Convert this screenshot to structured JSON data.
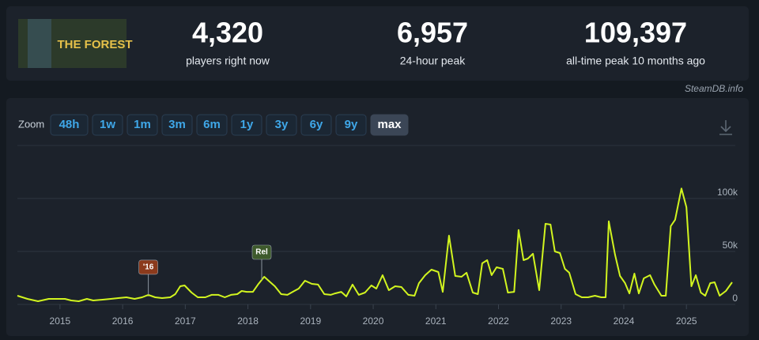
{
  "header": {
    "logo": "THE FOREST",
    "stats": [
      {
        "value": "4,320",
        "label": "players right now"
      },
      {
        "value": "6,957",
        "label": "24-hour peak"
      },
      {
        "value": "109,397",
        "label": "all-time peak 10 months ago"
      }
    ],
    "credit": "SteamDB.info"
  },
  "zoom": {
    "label": "Zoom",
    "buttons": [
      "48h",
      "1w",
      "1m",
      "3m",
      "6m",
      "1y",
      "3y",
      "6y",
      "9y",
      "max"
    ],
    "active": "max"
  },
  "chart_data": {
    "type": "line",
    "color": "#d2f51f",
    "grid": true,
    "x": [
      2014.32,
      2014.48,
      2014.65,
      2014.82,
      2014.95,
      2015.08,
      2015.18,
      2015.3,
      2015.43,
      2015.53,
      2015.68,
      2015.81,
      2015.93,
      2016.06,
      2016.19,
      2016.31,
      2016.41,
      2016.52,
      2016.63,
      2016.76,
      2016.84,
      2016.92,
      2016.99,
      2017.1,
      2017.2,
      2017.32,
      2017.42,
      2017.53,
      2017.63,
      2017.73,
      2017.83,
      2017.9,
      2017.98,
      2018.08,
      2018.16,
      2018.26,
      2018.33,
      2018.43,
      2018.53,
      2018.63,
      2018.74,
      2018.81,
      2018.91,
      2019.02,
      2019.12,
      2019.22,
      2019.32,
      2019.39,
      2019.49,
      2019.57,
      2019.67,
      2019.77,
      2019.87,
      2019.97,
      2020.05,
      2020.15,
      2020.25,
      2020.35,
      2020.45,
      2020.56,
      2020.66,
      2020.73,
      2020.83,
      2020.93,
      2021.04,
      2021.11,
      2021.21,
      2021.31,
      2021.41,
      2021.49,
      2021.59,
      2021.67,
      2021.74,
      2021.82,
      2021.89,
      2021.97,
      2022.07,
      2022.15,
      2022.25,
      2022.32,
      2022.4,
      2022.47,
      2022.55,
      2022.65,
      2022.75,
      2022.83,
      2022.9,
      2022.98,
      2023.06,
      2023.13,
      2023.23,
      2023.33,
      2023.43,
      2023.54,
      2023.64,
      2023.71,
      2023.76,
      2023.86,
      2023.94,
      2024.02,
      2024.09,
      2024.17,
      2024.24,
      2024.32,
      2024.42,
      2024.49,
      2024.6,
      2024.67,
      2024.75,
      2024.82,
      2024.92,
      2025.0,
      2025.08,
      2025.15,
      2025.23,
      2025.3,
      2025.38,
      2025.45,
      2025.53,
      2025.63,
      2025.73
    ],
    "values": [
      8200,
      5200,
      3000,
      5200,
      5200,
      5200,
      3700,
      3000,
      5200,
      3700,
      4500,
      5200,
      6000,
      6700,
      5200,
      6700,
      9000,
      6700,
      6000,
      6700,
      9700,
      17200,
      17900,
      11200,
      6700,
      6700,
      9000,
      9000,
      6700,
      9000,
      9700,
      12700,
      11900,
      11900,
      18700,
      26100,
      22400,
      17200,
      9700,
      9000,
      12700,
      14900,
      22400,
      19400,
      18700,
      9700,
      9000,
      10400,
      11900,
      7500,
      18700,
      9000,
      11200,
      17900,
      14900,
      27600,
      13400,
      17200,
      16400,
      9000,
      8200,
      20100,
      27600,
      32800,
      30600,
      11900,
      64900,
      26900,
      26100,
      29900,
      11200,
      9700,
      38800,
      41800,
      27600,
      35100,
      33600,
      11200,
      11900,
      70200,
      41800,
      43300,
      47800,
      13400,
      76100,
      75400,
      50000,
      48500,
      33600,
      29900,
      9700,
      6700,
      6700,
      8200,
      6700,
      6700,
      78400,
      47000,
      26900,
      20100,
      10400,
      29100,
      10400,
      24600,
      27600,
      18700,
      8200,
      8200,
      73900,
      79900,
      109400,
      91800,
      17200,
      27600,
      11200,
      8200,
      20100,
      20900,
      8200,
      12700,
      20900
    ],
    "xlim": [
      2014.32,
      2025.78
    ],
    "xticks": [
      2015,
      2016,
      2017,
      2018,
      2019,
      2020,
      2021,
      2022,
      2023,
      2024,
      2025
    ],
    "ylim": [
      0,
      150000
    ],
    "yticks": [
      {
        "value": 0,
        "label": "0"
      },
      {
        "value": 50000,
        "label": "50k"
      },
      {
        "value": 100000,
        "label": "100k"
      }
    ],
    "annotations": [
      {
        "text": "'16",
        "x": 2016.41,
        "color": "#8b3a1c"
      },
      {
        "text": "Rel",
        "x": 2018.22,
        "color": "#3e5a2c"
      }
    ]
  }
}
